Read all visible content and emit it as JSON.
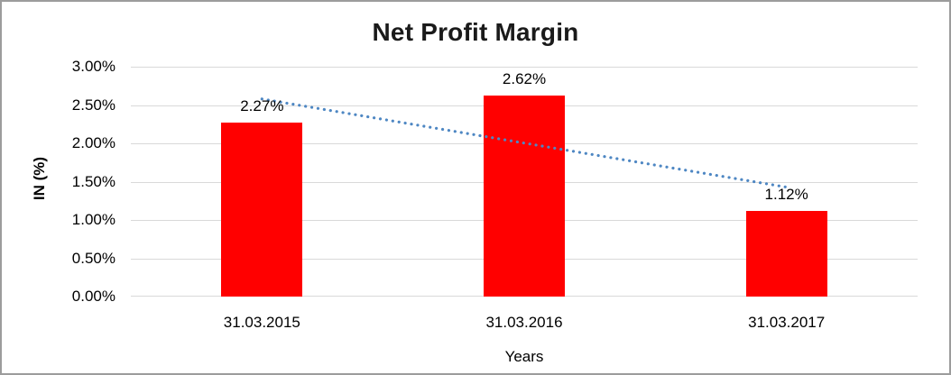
{
  "chart_data": {
    "type": "bar",
    "title": "Net Profit Margin",
    "xlabel": "Years",
    "ylabel": "IN (%)",
    "categories": [
      "31.03.2015",
      "31.03.2016",
      "31.03.2017"
    ],
    "values": [
      2.27,
      2.62,
      1.12
    ],
    "data_labels": [
      "2.27%",
      "2.62%",
      "1.12%"
    ],
    "ylim": [
      0,
      3
    ],
    "ytick_step": 0.5,
    "yticks_top_to_bottom": [
      "3.00%",
      "2.50%",
      "2.00%",
      "1.50%",
      "1.00%",
      "0.50%",
      "0.00%"
    ],
    "grid": true,
    "legend": false,
    "trendline": {
      "type": "linear",
      "style": "dotted"
    },
    "colors": {
      "bar": "#FF0000",
      "trendline": "#4E87C3",
      "gridline": "#D9D9D9",
      "text": "#000000",
      "title": "#1a1a1a",
      "frame_border": "#9c9c9c"
    }
  }
}
